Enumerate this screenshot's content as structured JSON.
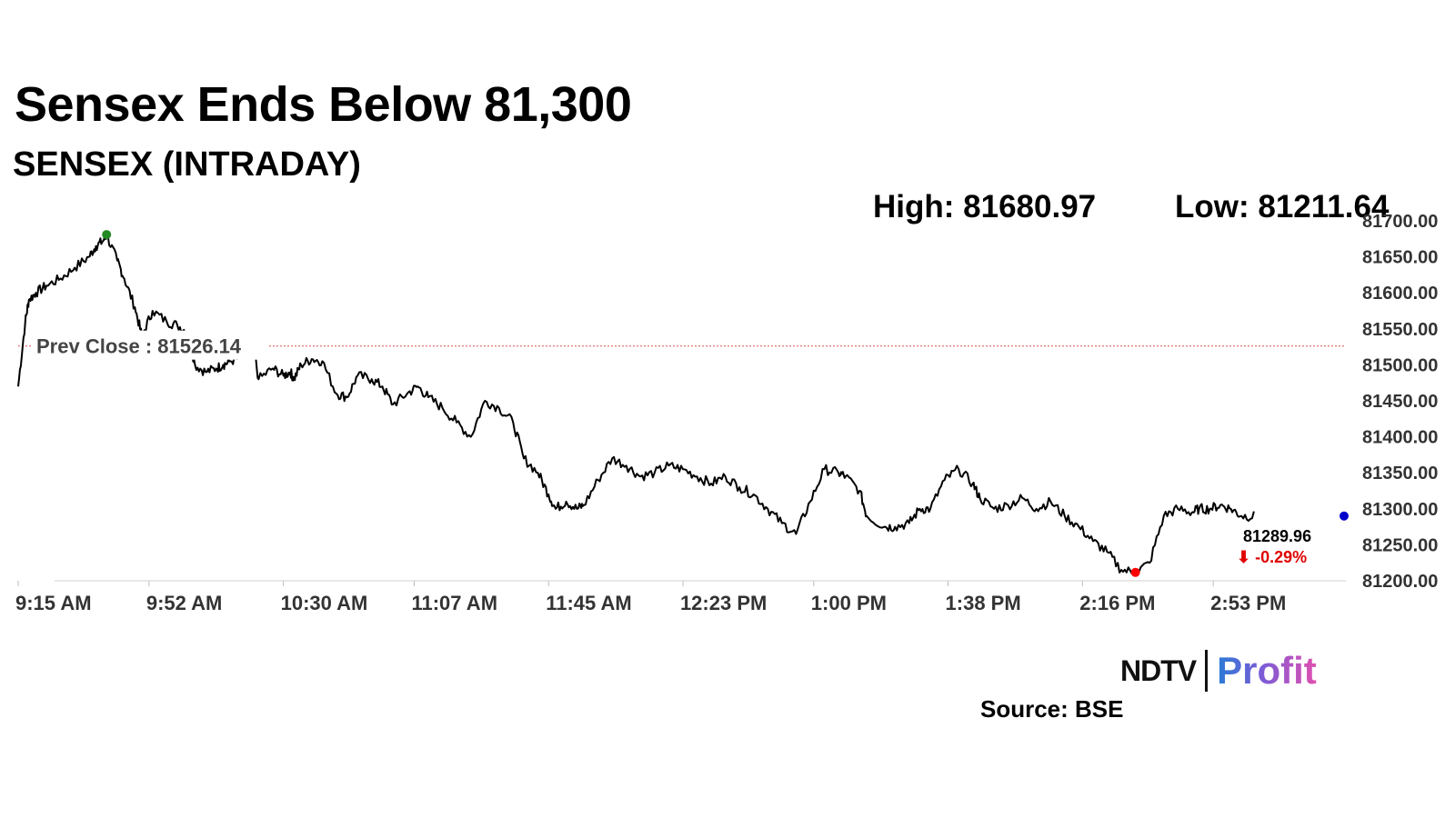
{
  "header": {
    "title": "Sensex Ends Below 81,300",
    "subtitle": "SENSEX (INTRADAY)",
    "high_text": "High: 81680.97",
    "low_text": "Low: 81211.64"
  },
  "chart_data": {
    "type": "line",
    "title": "Sensex Ends Below 81,300",
    "subtitle": "SENSEX (INTRADAY)",
    "high": 81680.97,
    "low": 81211.64,
    "prev_close": 81526.14,
    "prev_close_label": "Prev Close : 81526.14",
    "last_value": 81289.96,
    "last_value_label": "81289.96",
    "change_label": "⬇ -0.29%",
    "ylim": [
      81200,
      81700
    ],
    "yticks": [
      81200,
      81250,
      81300,
      81350,
      81400,
      81450,
      81500,
      81550,
      81600,
      81650,
      81700
    ],
    "ytick_labels": [
      "81200.00",
      "81250.00",
      "81300.00",
      "81350.00",
      "81400.00",
      "81450.00",
      "81500.00",
      "81550.00",
      "81600.00",
      "81650.00",
      "81700.00"
    ],
    "xticks": [
      "9:15 AM",
      "9:52 AM",
      "10:30 AM",
      "11:07 AM",
      "11:45 AM",
      "12:23 PM",
      "1:00 PM",
      "1:38 PM",
      "2:16 PM",
      "2:53 PM"
    ],
    "xtick_minutes": [
      0,
      37,
      75,
      112,
      150,
      188,
      225,
      263,
      301,
      338
    ],
    "x_range_minutes": [
      0,
      375
    ],
    "grid": false,
    "colors": {
      "line": "#000000",
      "prev_close": "#d9534f",
      "high_marker": "#228b22",
      "low_marker": "#ff0000",
      "last_marker": "#0000cc",
      "change": "#e00000"
    },
    "series": [
      {
        "values_x_minutes": [
          0,
          2,
          3,
          5,
          8,
          12,
          16,
          20,
          22,
          24,
          25,
          28,
          30,
          33,
          35,
          38,
          42,
          45,
          48,
          50,
          53,
          56,
          58,
          60,
          63,
          66,
          68,
          72,
          75,
          77,
          78,
          80,
          83,
          86,
          90,
          93,
          96,
          100,
          103,
          106,
          110,
          113,
          116,
          120,
          124,
          128,
          132,
          136,
          140,
          143,
          147,
          150,
          152,
          155,
          158,
          160,
          164,
          168,
          172,
          176,
          180,
          184,
          188,
          192,
          196,
          200,
          204,
          208,
          212,
          216,
          220,
          224,
          228,
          232,
          234,
          238,
          240,
          245,
          248,
          252,
          255,
          258,
          262,
          266,
          270,
          272,
          276,
          280,
          284,
          288,
          292,
          296,
          300,
          304,
          308,
          312,
          316,
          320,
          324,
          328,
          332,
          334,
          337,
          340,
          343,
          346,
          350,
          354,
          358,
          362,
          366,
          375
        ],
        "values_y": [
          81470,
          81560,
          81590,
          81600,
          81610,
          81620,
          81635,
          81650,
          81665,
          81672,
          81680,
          81645,
          81620,
          81580,
          81540,
          81575,
          81560,
          81555,
          81545,
          81500,
          81490,
          81495,
          81500,
          81505,
          81510,
          81540,
          81480,
          81495,
          81485,
          81490,
          81480,
          81500,
          81508,
          81505,
          81460,
          81455,
          81485,
          81480,
          81470,
          81445,
          81460,
          81470,
          81455,
          81440,
          81420,
          81400,
          81450,
          81440,
          81420,
          81370,
          81350,
          81320,
          81300,
          81310,
          81300,
          81305,
          81340,
          81370,
          81360,
          81345,
          81350,
          81360,
          81355,
          81345,
          81335,
          81345,
          81330,
          81320,
          81300,
          81280,
          81265,
          81310,
          81355,
          81350,
          81345,
          81325,
          81290,
          81275,
          81275,
          81280,
          81300,
          81300,
          81340,
          81355,
          81335,
          81315,
          81300,
          81305,
          81315,
          81300,
          81310,
          81290,
          81275,
          81255,
          81240,
          81215,
          81212,
          81225,
          81290,
          81300,
          81295,
          81300,
          81300,
          81305,
          81300,
          81290,
          81290
        ]
      }
    ]
  },
  "branding": {
    "logo_ndtv": "NDTV",
    "logo_profit": "Profit",
    "source": "Source: BSE"
  }
}
